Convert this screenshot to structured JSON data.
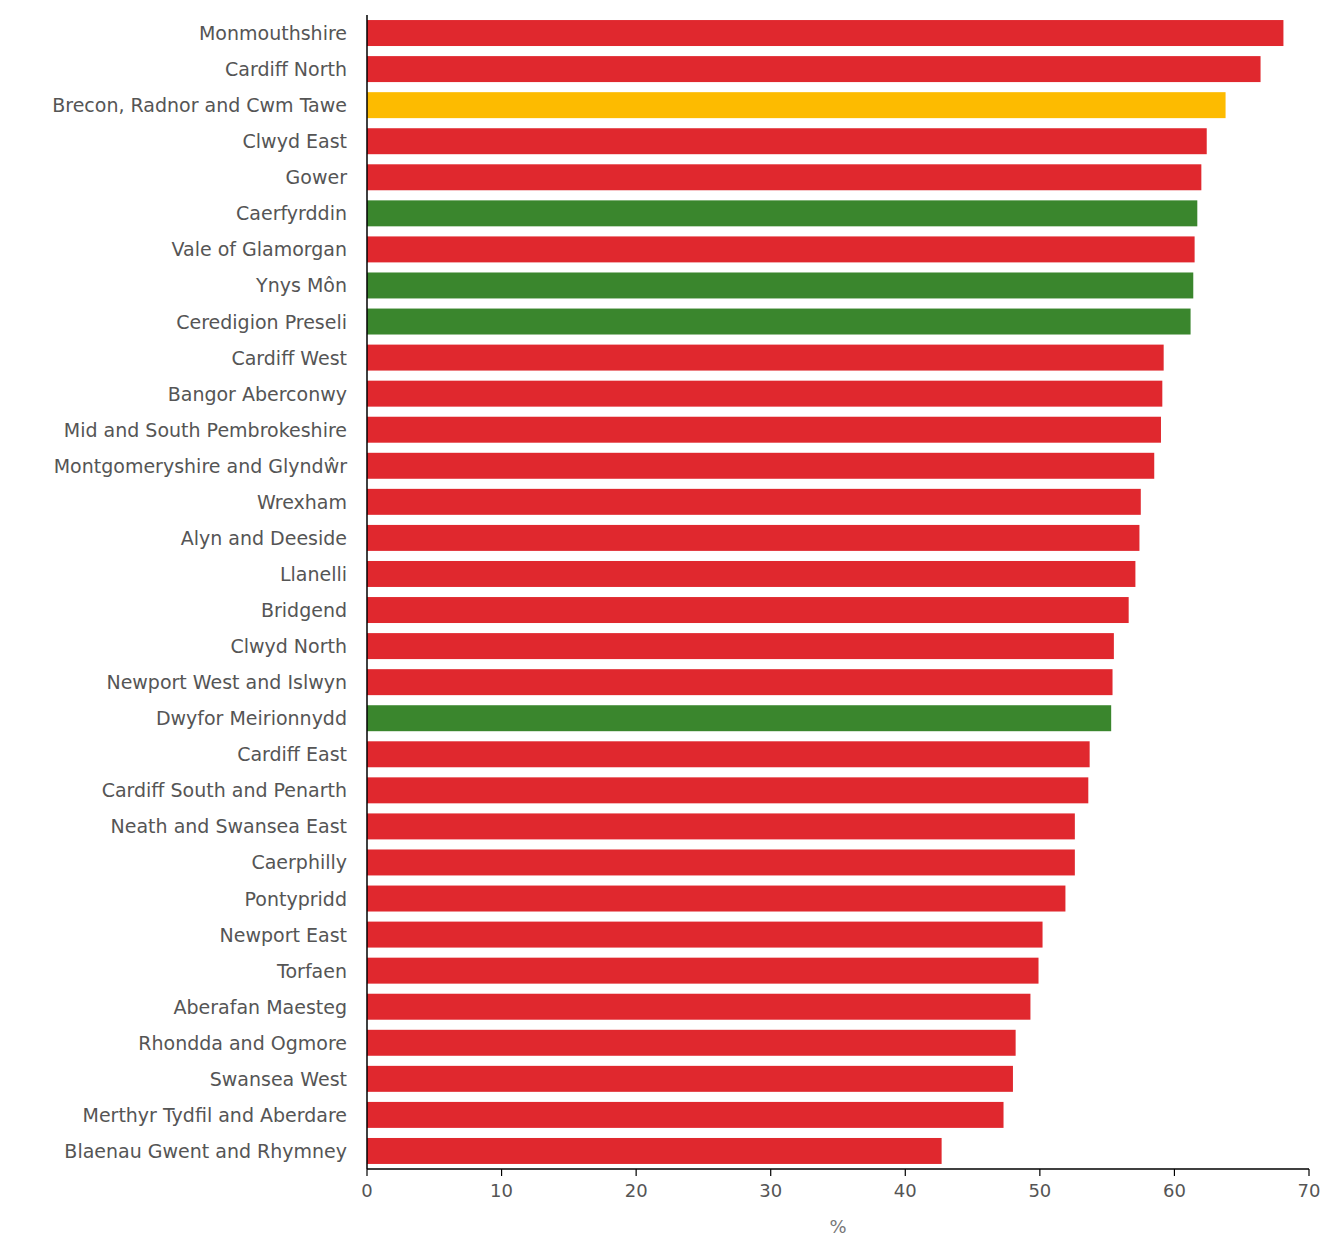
{
  "chart_data": {
    "type": "bar",
    "orientation": "horizontal",
    "categories": [
      "Monmouthshire",
      "Cardiff North",
      "Brecon, Radnor and Cwm Tawe",
      "Clwyd East",
      "Gower",
      "Caerfyrddin",
      "Vale of Glamorgan",
      "Ynys Môn",
      "Ceredigion Preseli",
      "Cardiff West",
      "Bangor Aberconwy",
      "Mid and South Pembrokeshire",
      "Montgomeryshire and Glyndŵr",
      "Wrexham",
      "Alyn and Deeside",
      "Llanelli",
      "Bridgend",
      "Clwyd North",
      "Newport West and Islwyn",
      "Dwyfor Meirionnydd",
      "Cardiff East",
      "Cardiff South and Penarth",
      "Neath and Swansea East",
      "Caerphilly",
      "Pontypridd",
      "Newport East",
      "Torfaen",
      "Aberafan Maesteg",
      "Rhondda and Ogmore",
      "Swansea West",
      "Merthyr Tydfil and Aberdare",
      "Blaenau Gwent and Rhymney"
    ],
    "values": [
      68.1,
      66.4,
      63.8,
      62.4,
      62.0,
      61.7,
      61.5,
      61.4,
      61.2,
      59.2,
      59.1,
      59.0,
      58.5,
      57.5,
      57.4,
      57.1,
      56.6,
      55.5,
      55.4,
      55.3,
      53.7,
      53.6,
      52.6,
      52.6,
      51.9,
      50.2,
      49.9,
      49.3,
      48.2,
      48.0,
      47.3,
      42.7
    ],
    "colors": [
      "#e0282e",
      "#e0282e",
      "#fdbb00",
      "#e0282e",
      "#e0282e",
      "#3a862d",
      "#e0282e",
      "#3a862d",
      "#3a862d",
      "#e0282e",
      "#e0282e",
      "#e0282e",
      "#e0282e",
      "#e0282e",
      "#e0282e",
      "#e0282e",
      "#e0282e",
      "#e0282e",
      "#e0282e",
      "#3a862d",
      "#e0282e",
      "#e0282e",
      "#e0282e",
      "#e0282e",
      "#e0282e",
      "#e0282e",
      "#e0282e",
      "#e0282e",
      "#e0282e",
      "#e0282e",
      "#e0282e",
      "#e0282e"
    ],
    "x_label": "%",
    "xlim": [
      0,
      70
    ],
    "xticks": [
      0,
      10,
      20,
      30,
      40,
      50,
      60,
      70
    ],
    "grid": false
  }
}
